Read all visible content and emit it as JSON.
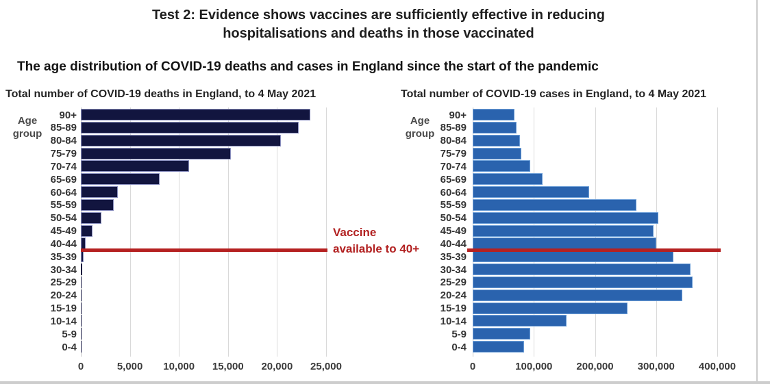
{
  "header": {
    "title_line1": "Test 2: Evidence shows vaccines are sufficiently effective in reducing",
    "title_line2": "hospitalisations and deaths in those vaccinated",
    "subtitle": "The age distribution of COVID-19 deaths and cases in England since the start of the pandemic"
  },
  "annotation": {
    "line1": "Vaccine",
    "line2": "available to 40+",
    "between_groups": [
      "40-44",
      "35-39"
    ],
    "color": "#b22121"
  },
  "colors": {
    "deaths_bar": "#12153f",
    "deaths_bar_edge": "#8b90bf",
    "cases_bar": "#2a63ae",
    "cases_bar_edge": "#6fa0d8",
    "vaccine_line": "#b52121",
    "gridline": "#d9d9d9"
  },
  "chart_data": [
    {
      "type": "bar",
      "orientation": "horizontal",
      "title": "Total number of COVID-19 deaths in England, to 4 May 2021",
      "ylabel_line1": "Age",
      "ylabel_line2": "group",
      "categories": [
        "90+",
        "85-89",
        "80-84",
        "75-79",
        "70-74",
        "65-69",
        "60-64",
        "55-59",
        "50-54",
        "45-49",
        "40-44",
        "35-39",
        "30-34",
        "25-29",
        "20-24",
        "15-19",
        "10-14",
        "5-9",
        "0-4"
      ],
      "values": [
        23400,
        22200,
        20400,
        15300,
        11000,
        8000,
        3800,
        3350,
        2100,
        1200,
        520,
        280,
        140,
        70,
        35,
        18,
        10,
        6,
        12
      ],
      "xlim": [
        0,
        25000
      ],
      "xtick_values": [
        0,
        5000,
        10000,
        15000,
        20000,
        25000
      ],
      "xtick_labels": [
        "0",
        "5,000",
        "10,000",
        "15,000",
        "20,000",
        "25,000"
      ],
      "grid": true,
      "legend": "none"
    },
    {
      "type": "bar",
      "orientation": "horizontal",
      "title": "Total number of COVID-19 cases in England, to 4 May 2021",
      "ylabel_line1": "Age",
      "ylabel_line2": "group",
      "categories": [
        "90+",
        "85-89",
        "80-84",
        "75-79",
        "70-74",
        "65-69",
        "60-64",
        "55-59",
        "50-54",
        "45-49",
        "40-44",
        "35-39",
        "30-34",
        "25-29",
        "20-24",
        "15-19",
        "10-14",
        "5-9",
        "0-4"
      ],
      "values": [
        68000,
        72000,
        77000,
        80000,
        94000,
        114000,
        190000,
        268000,
        304000,
        296000,
        300000,
        328000,
        356000,
        360000,
        343000,
        253000,
        154000,
        94000,
        84000
      ],
      "xlim": [
        0,
        400000
      ],
      "xtick_values": [
        0,
        100000,
        200000,
        300000,
        400000
      ],
      "xtick_labels": [
        "0",
        "100,000",
        "200,000",
        "300,000",
        "400,000"
      ],
      "grid": true,
      "legend": "none"
    }
  ]
}
